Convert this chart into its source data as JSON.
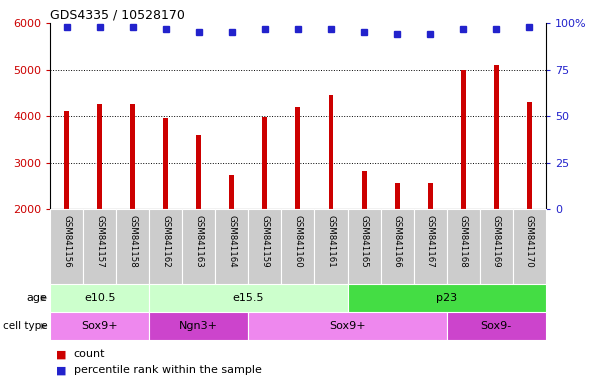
{
  "title": "GDS4335 / 10528170",
  "samples": [
    "GSM841156",
    "GSM841157",
    "GSM841158",
    "GSM841162",
    "GSM841163",
    "GSM841164",
    "GSM841159",
    "GSM841160",
    "GSM841161",
    "GSM841165",
    "GSM841166",
    "GSM841167",
    "GSM841168",
    "GSM841169",
    "GSM841170"
  ],
  "counts": [
    4100,
    4250,
    4270,
    3950,
    3600,
    2730,
    3980,
    4200,
    4460,
    2820,
    2560,
    2570,
    5000,
    5100,
    4300
  ],
  "percentile_ranks": [
    98,
    98,
    98,
    97,
    95,
    95,
    97,
    97,
    97,
    95,
    94,
    94,
    97,
    97,
    98
  ],
  "bar_color": "#cc0000",
  "dot_color": "#2222cc",
  "ylim_left": [
    2000,
    6000
  ],
  "ylim_right": [
    0,
    100
  ],
  "yticks_left": [
    2000,
    3000,
    4000,
    5000,
    6000
  ],
  "yticks_right": [
    0,
    25,
    50,
    75,
    100
  ],
  "age_groups": [
    {
      "label": "e10.5",
      "start": 0,
      "end": 3,
      "color": "#ccffcc"
    },
    {
      "label": "e15.5",
      "start": 3,
      "end": 9,
      "color": "#ccffcc"
    },
    {
      "label": "p23",
      "start": 9,
      "end": 15,
      "color": "#44dd44"
    }
  ],
  "cell_type_groups": [
    {
      "label": "Sox9+",
      "start": 0,
      "end": 3,
      "color": "#ee88ee"
    },
    {
      "label": "Ngn3+",
      "start": 3,
      "end": 6,
      "color": "#cc44cc"
    },
    {
      "label": "Sox9+",
      "start": 6,
      "end": 12,
      "color": "#ee88ee"
    },
    {
      "label": "Sox9-",
      "start": 12,
      "end": 15,
      "color": "#cc44cc"
    }
  ],
  "legend_count_color": "#cc0000",
  "legend_dot_color": "#2222cc",
  "tick_label_color_left": "#cc0000",
  "tick_label_color_right": "#2222cc",
  "background_color": "#ffffff",
  "plot_bg_color": "#ffffff",
  "sample_bg_color": "#cccccc",
  "bar_width": 0.15
}
